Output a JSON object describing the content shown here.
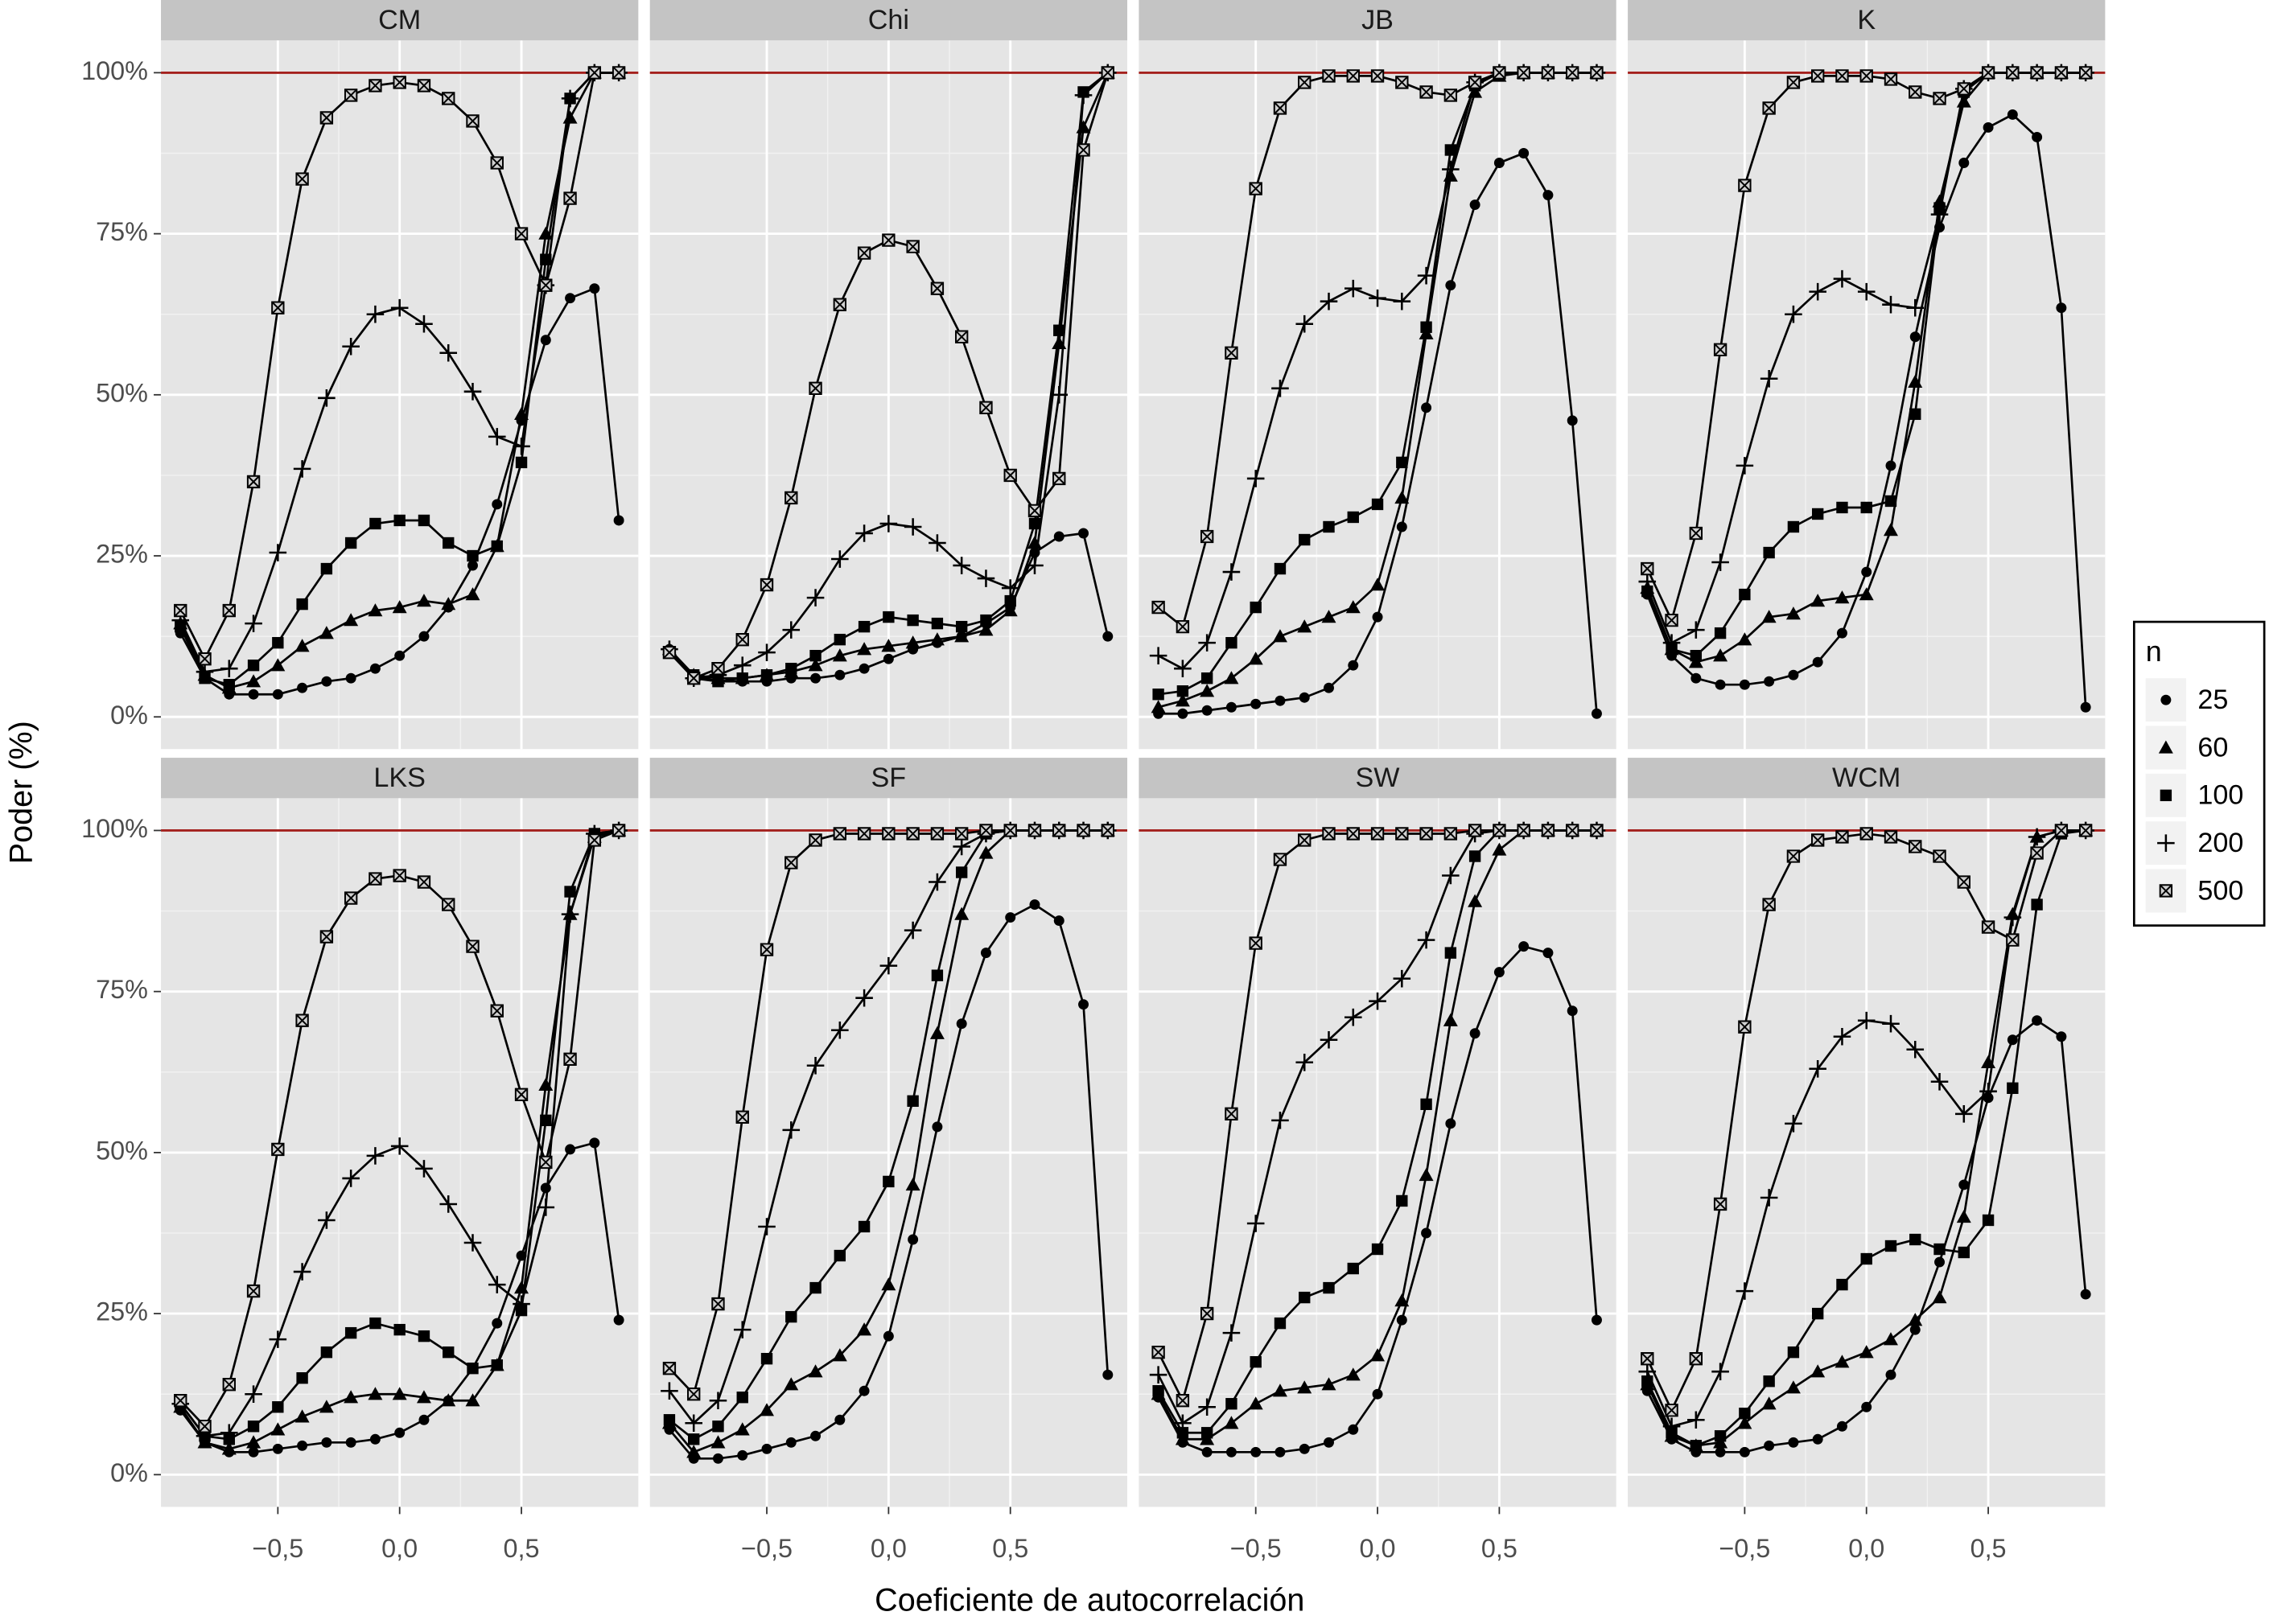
{
  "chart_data": {
    "type": "line",
    "xlabel": "Coeficiente de autocorrelación",
    "ylabel": "Poder (%)",
    "x": [
      -0.9,
      -0.8,
      -0.7,
      -0.6,
      -0.5,
      -0.4,
      -0.3,
      -0.2,
      -0.1,
      0.0,
      0.1,
      0.2,
      0.3,
      0.4,
      0.5,
      0.6,
      0.7,
      0.8,
      0.9
    ],
    "xlim": [
      -0.98,
      0.98
    ],
    "xticks": [
      {
        "value": -0.5,
        "label": "−0,5"
      },
      {
        "value": 0.0,
        "label": "0,0"
      },
      {
        "value": 0.5,
        "label": "0,5"
      }
    ],
    "ylim": [
      -5,
      105
    ],
    "yticks": [
      {
        "value": 0,
        "label": "0%"
      },
      {
        "value": 25,
        "label": "25%"
      },
      {
        "value": 50,
        "label": "50%"
      },
      {
        "value": 75,
        "label": "75%"
      },
      {
        "value": 100,
        "label": "100%"
      }
    ],
    "grid": true,
    "hline": 100,
    "hline_color": "#a3201d",
    "legend": {
      "title": "n",
      "position": "right"
    },
    "series": [
      {
        "name": "25",
        "marker": "circle",
        "color": "#000000"
      },
      {
        "name": "60",
        "marker": "triangle",
        "color": "#000000"
      },
      {
        "name": "100",
        "marker": "square",
        "color": "#000000"
      },
      {
        "name": "200",
        "marker": "plus",
        "color": "#000000"
      },
      {
        "name": "500",
        "marker": "boxx",
        "color": "#000000"
      }
    ],
    "panels": [
      {
        "title": "CM",
        "values": [
          [
            13,
            6,
            3.5,
            3.5,
            3.5,
            4.5,
            5.5,
            6,
            7.5,
            9.5,
            12.5,
            17,
            23.5,
            33,
            46,
            58.5,
            65,
            66.5,
            30.5
          ],
          [
            14.5,
            6.5,
            4.5,
            5.5,
            8,
            11,
            13,
            15,
            16.5,
            17,
            18,
            17.5,
            19,
            26.5,
            47,
            75,
            93,
            100,
            100
          ],
          [
            14,
            6,
            5,
            8,
            11.5,
            17.5,
            23,
            27,
            30,
            30.5,
            30.5,
            27,
            25,
            26.5,
            39.5,
            71,
            96,
            100,
            100
          ],
          [
            15,
            7,
            7.5,
            14.5,
            25.5,
            38.5,
            49.5,
            57.5,
            62.5,
            63.5,
            61,
            56.5,
            50.5,
            43.5,
            42,
            67,
            96,
            100,
            100
          ],
          [
            16.5,
            9,
            16.5,
            36.5,
            63.5,
            83.5,
            93,
            96.5,
            98,
            98.5,
            98,
            96,
            92.5,
            86,
            75,
            67,
            80.5,
            100,
            100
          ]
        ]
      },
      {
        "title": "Chi",
        "values": [
          [
            10.5,
            6,
            5.5,
            5.5,
            5.5,
            6,
            6,
            6.5,
            7.5,
            9,
            10.5,
            11.5,
            12.5,
            14.5,
            17,
            25.5,
            28,
            28.5,
            12.5
          ],
          [
            10.5,
            6.5,
            6,
            6,
            6.5,
            7,
            8,
            9.5,
            10.5,
            11,
            11.5,
            12,
            12.5,
            13.5,
            16.5,
            27,
            58,
            91.5,
            100
          ],
          [
            10,
            6.5,
            5.5,
            6,
            6.5,
            7.5,
            9.5,
            12,
            14,
            15.5,
            15,
            14.5,
            14,
            15,
            18,
            30,
            60,
            97,
            100
          ],
          [
            10.5,
            6,
            6.5,
            8,
            10,
            13.5,
            18.5,
            24.5,
            28.5,
            30,
            29.5,
            27,
            23.5,
            21.5,
            20,
            23.5,
            50,
            96.5,
            100
          ],
          [
            10,
            6,
            7.5,
            12,
            20.5,
            34,
            51,
            64,
            72,
            74,
            73,
            66.5,
            59,
            48,
            37.5,
            32,
            37,
            88,
            100
          ]
        ]
      },
      {
        "title": "JB",
        "values": [
          [
            0.5,
            0.5,
            1,
            1.5,
            2,
            2.5,
            3,
            4.5,
            8,
            15.5,
            29.5,
            48,
            67,
            79.5,
            86,
            87.5,
            81,
            46,
            0.5
          ],
          [
            1.5,
            2.5,
            4,
            6,
            9,
            12.5,
            14,
            15.5,
            17,
            20.5,
            34,
            59.5,
            84,
            97,
            99.5,
            100,
            100,
            100,
            100
          ],
          [
            3.5,
            4,
            6,
            11.5,
            17,
            23,
            27.5,
            29.5,
            31,
            33,
            39.5,
            60.5,
            88,
            98,
            100,
            100,
            100,
            100,
            100
          ],
          [
            9.5,
            7.5,
            11.5,
            22.5,
            37,
            51,
            61,
            64.5,
            66.5,
            65,
            64.5,
            68.5,
            85,
            98.5,
            100,
            100,
            100,
            100,
            100
          ],
          [
            17,
            14,
            28,
            56.5,
            82,
            94.5,
            98.5,
            99.5,
            99.5,
            99.5,
            98.5,
            97,
            96.5,
            98.5,
            100,
            100,
            100,
            100,
            100
          ]
        ]
      },
      {
        "title": "K",
        "values": [
          [
            19,
            9.5,
            6,
            5,
            5,
            5.5,
            6.5,
            8.5,
            13,
            22.5,
            39,
            59,
            76,
            86,
            91.5,
            93.5,
            90,
            63.5,
            1.5
          ],
          [
            20,
            10.5,
            8.5,
            9.5,
            12,
            15.5,
            16,
            18,
            18.5,
            19,
            29,
            52,
            80,
            95.5,
            100,
            100,
            100,
            100,
            100
          ],
          [
            19.5,
            10.5,
            9.5,
            13,
            19,
            25.5,
            29.5,
            31.5,
            32.5,
            32.5,
            33.5,
            47,
            79,
            97,
            100,
            100,
            100,
            100,
            100
          ],
          [
            21,
            11.5,
            13.5,
            24,
            39,
            52.5,
            62.5,
            66,
            68,
            66,
            64,
            63.5,
            78,
            97.5,
            100,
            100,
            100,
            100,
            100
          ],
          [
            23,
            15,
            28.5,
            57,
            82.5,
            94.5,
            98.5,
            99.5,
            99.5,
            99.5,
            99,
            97,
            96,
            97.5,
            100,
            100,
            100,
            100,
            100
          ]
        ]
      },
      {
        "title": "LKS",
        "values": [
          [
            10,
            5,
            3.5,
            3.5,
            4,
            4.5,
            5,
            5,
            5.5,
            6.5,
            8.5,
            11.5,
            16.5,
            23.5,
            34,
            44.5,
            50.5,
            51.5,
            24
          ],
          [
            10.5,
            5,
            4,
            5,
            7,
            9,
            10.5,
            12,
            12.5,
            12.5,
            12,
            11.5,
            11.5,
            17,
            29,
            60.5,
            87,
            99,
            100
          ],
          [
            11,
            6,
            5.5,
            7.5,
            10.5,
            15,
            19,
            22,
            23.5,
            22.5,
            21.5,
            19,
            16.5,
            17,
            25.5,
            55,
            90.5,
            99.5,
            100
          ],
          [
            11,
            6,
            6.5,
            12.5,
            21,
            31.5,
            39.5,
            46,
            49.5,
            51,
            47.5,
            42,
            36,
            29.5,
            26.5,
            41.5,
            87,
            99.5,
            100
          ],
          [
            11.5,
            7.5,
            14,
            28.5,
            50.5,
            70.5,
            83.5,
            89.5,
            92.5,
            93,
            92,
            88.5,
            82,
            72,
            59,
            48.5,
            64.5,
            98.5,
            100
          ]
        ]
      },
      {
        "title": "SF",
        "values": [
          [
            7,
            2.5,
            2.5,
            3,
            4,
            5,
            6,
            8.5,
            13,
            21.5,
            36.5,
            54,
            70,
            81,
            86.5,
            88.5,
            86,
            73,
            15.5
          ],
          [
            8,
            3.5,
            5,
            7,
            10,
            14,
            16,
            18.5,
            22.5,
            29.5,
            45,
            68.5,
            87,
            96.5,
            100,
            100,
            100,
            100,
            100
          ],
          [
            8.5,
            5.5,
            7.5,
            12,
            18,
            24.5,
            29,
            34,
            38.5,
            45.5,
            58,
            77.5,
            93.5,
            99.5,
            100,
            100,
            100,
            100,
            100
          ],
          [
            13,
            8,
            11.5,
            22.5,
            38.5,
            53.5,
            63.5,
            69,
            74,
            79,
            84.5,
            92,
            97.5,
            99.5,
            100,
            100,
            100,
            100,
            100
          ],
          [
            16.5,
            12.5,
            26.5,
            55.5,
            81.5,
            95,
            98.5,
            99.5,
            99.5,
            99.5,
            99.5,
            99.5,
            99.5,
            100,
            100,
            100,
            100,
            100,
            100
          ]
        ]
      },
      {
        "title": "SW",
        "values": [
          [
            12,
            5,
            3.5,
            3.5,
            3.5,
            3.5,
            4,
            5,
            7,
            12.5,
            24,
            37.5,
            54.5,
            68.5,
            78,
            82,
            81,
            72,
            24
          ],
          [
            12.5,
            5.5,
            5.5,
            8,
            11,
            13,
            13.5,
            14,
            15.5,
            18.5,
            27,
            46.5,
            70.5,
            89,
            97,
            100,
            100,
            100,
            100
          ],
          [
            13,
            6.5,
            6.5,
            11,
            17.5,
            23.5,
            27.5,
            29,
            32,
            35,
            42.5,
            57.5,
            81,
            96,
            100,
            100,
            100,
            100,
            100
          ],
          [
            15.5,
            8,
            10.5,
            22,
            39,
            55,
            64,
            67.5,
            71,
            73.5,
            77,
            83,
            93,
            99.5,
            100,
            100,
            100,
            100,
            100
          ],
          [
            19,
            11.5,
            25,
            56,
            82.5,
            95.5,
            98.5,
            99.5,
            99.5,
            99.5,
            99.5,
            99.5,
            99.5,
            100,
            100,
            100,
            100,
            100,
            100
          ]
        ]
      },
      {
        "title": "WCM",
        "values": [
          [
            13,
            5.5,
            3.5,
            3.5,
            3.5,
            4.5,
            5,
            5.5,
            7.5,
            10.5,
            15.5,
            22.5,
            33,
            45,
            58.5,
            67.5,
            70.5,
            68,
            28
          ],
          [
            14,
            6,
            4.5,
            5,
            8,
            11,
            13.5,
            16,
            17.5,
            19,
            21,
            24,
            27.5,
            40,
            64,
            87,
            99,
            100,
            100
          ],
          [
            14.5,
            6.5,
            4.5,
            6,
            9.5,
            14.5,
            19,
            25,
            29.5,
            33.5,
            35.5,
            36.5,
            35,
            34.5,
            39.5,
            60,
            88.5,
            99.5,
            100
          ],
          [
            16,
            7.5,
            8.5,
            16,
            28.5,
            43,
            54.5,
            63,
            68,
            70.5,
            70,
            66,
            61,
            56,
            59.5,
            86.5,
            99,
            100,
            100
          ],
          [
            18,
            10,
            18,
            42,
            69.5,
            88.5,
            96,
            98.5,
            99,
            99.5,
            99,
            97.5,
            96,
            92,
            85,
            83,
            96.5,
            100,
            100
          ]
        ]
      }
    ]
  }
}
